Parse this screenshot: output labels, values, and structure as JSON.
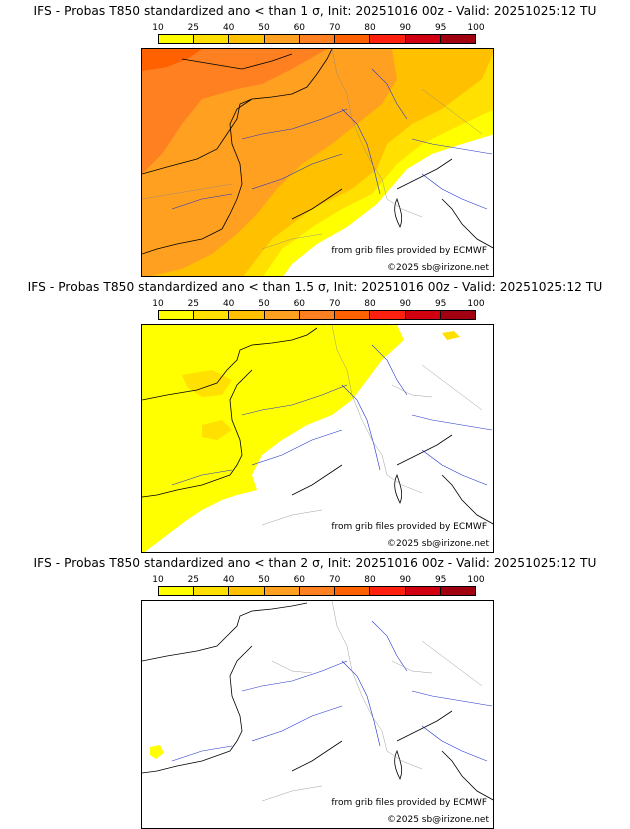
{
  "colorbar": {
    "ticks": [
      "10",
      "25",
      "40",
      "50",
      "60",
      "70",
      "80",
      "90",
      "95",
      "100"
    ],
    "colors": [
      "#ffff00",
      "#ffe000",
      "#ffc000",
      "#ffa020",
      "#ff8020",
      "#ff6000",
      "#ff2010",
      "#d00010",
      "#a00010",
      "#600000"
    ]
  },
  "panels": [
    {
      "title": "IFS - Probas T850  standardized ano < than 1 σ, Init: 20251016 00z - Valid: 20251025:12 TU",
      "source_credit": "from grib files provided by ECMWF",
      "copyright": "©2025 sb@irizone.net"
    },
    {
      "title": "IFS - Probas T850  standardized ano < than 1.5 σ, Init: 20251016 00z - Valid: 20251025:12 TU",
      "source_credit": "from grib files provided by ECMWF",
      "copyright": "©2025 sb@irizone.net"
    },
    {
      "title": "IFS - Probas T850  standardized ano < than 2 σ, Init: 20251016 00z - Valid: 20251025:12 TU",
      "source_credit": "from grib files provided by ECMWF",
      "copyright": "©2025 sb@irizone.net"
    }
  ]
}
